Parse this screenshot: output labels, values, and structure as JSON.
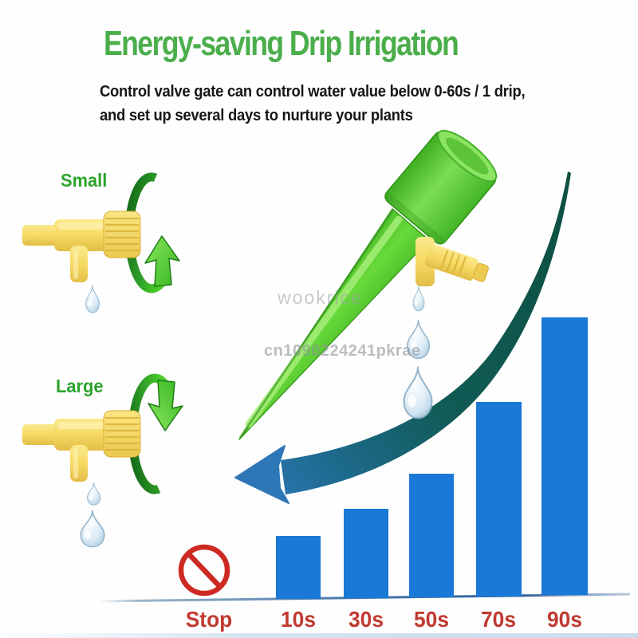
{
  "title": {
    "text": "Energy-saving Drip Irrigation",
    "color": "#4bae4b"
  },
  "subtitle": {
    "line1": "Control valve gate can control water value below 0-60s / 1 drip,",
    "line2": "and set up several days to nurture your plants"
  },
  "valve_settings": {
    "small_label": "Small",
    "large_label": "Large"
  },
  "watermarks": {
    "center": "wookrice",
    "code": "cn1090224241pkrae"
  },
  "chart_data": {
    "type": "bar",
    "categories": [
      "Stop",
      "10s",
      "30s",
      "50s",
      "70s",
      "90s"
    ],
    "values": [
      0,
      79,
      112,
      155,
      244,
      348
    ],
    "note": "bar heights read from image in pixels; no numeric y-axis shown; 'Stop' category is marked with a red prohibition icon instead of a bar",
    "title": "",
    "xlabel": "",
    "ylabel": "",
    "gridlines": false,
    "legend": false,
    "bar_color": "#1a79d6",
    "label_color": "#c13a31"
  },
  "colors": {
    "title_green": "#4bae4b",
    "valve_label_green": "#2da32d",
    "subtitle_black": "#161616",
    "bar_blue": "#1a79d6",
    "category_label_red": "#c13a31",
    "stop_sign_red": "#cd2a24",
    "curve_arrow_teal": "#0d4f41",
    "curve_arrow_blue": "#2e77b7",
    "device_green": "#55c42e",
    "rotation_arrow_green": "#3fc32a",
    "valve_yellow": "#f6d963",
    "water_drop_blue": "#a9c9e2"
  }
}
